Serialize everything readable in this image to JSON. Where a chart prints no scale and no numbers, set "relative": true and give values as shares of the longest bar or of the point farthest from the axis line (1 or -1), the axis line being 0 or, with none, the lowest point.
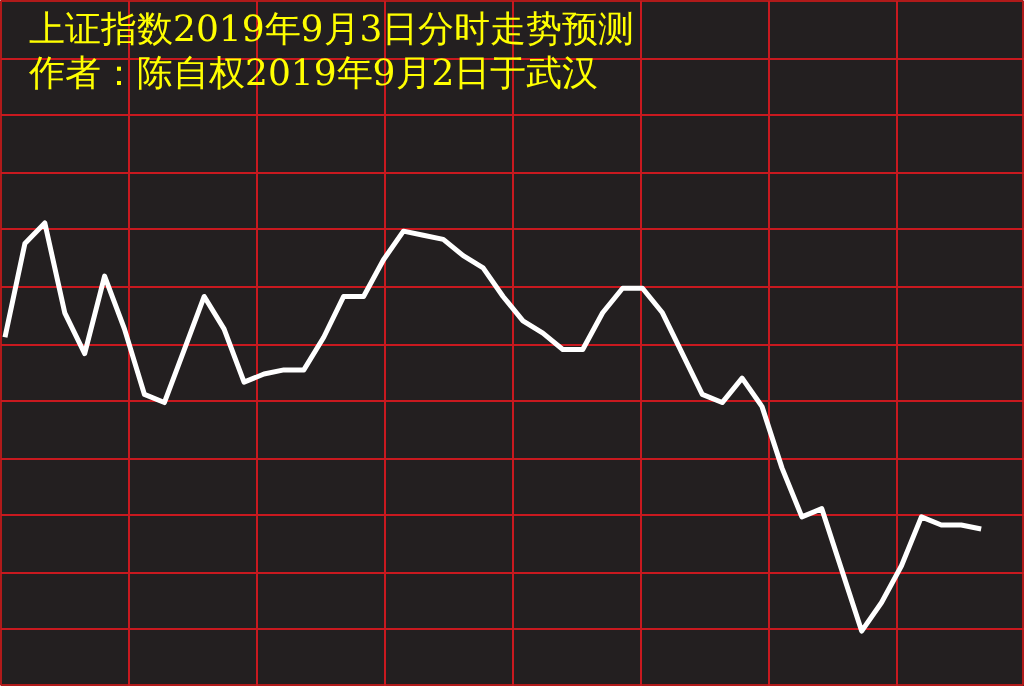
{
  "chart_data": {
    "type": "line",
    "title": "上证指数2019年9月3日分时走势预测",
    "subtitle": "作者：陈自权2019年9月2日于武汉",
    "relative": true,
    "grid": true,
    "marker": "none",
    "line_style": "solid",
    "categories": [
      null,
      null,
      null,
      null,
      null,
      null,
      null,
      null,
      null,
      null,
      null,
      null,
      null,
      null,
      null,
      null,
      null,
      null,
      null,
      null,
      null,
      null,
      null,
      null,
      null,
      null,
      null,
      null,
      null,
      null,
      null,
      null,
      null,
      null,
      null,
      null,
      null,
      null,
      null,
      null,
      null,
      null,
      null,
      null,
      null,
      null,
      null,
      null,
      null,
      null
    ],
    "series": [
      {
        "color": "#ffffff",
        "values": [
          0.72,
          0.95,
          1,
          0.78,
          0.68,
          0.87,
          0.74,
          0.58,
          0.56,
          0.69,
          0.82,
          0.74,
          0.61,
          0.63,
          0.64,
          0.64,
          0.72,
          0.82,
          0.82,
          0.91,
          0.98,
          0.97,
          0.96,
          0.92,
          0.89,
          0.82,
          0.76,
          0.73,
          0.69,
          0.69,
          0.78,
          0.84,
          0.84,
          0.78,
          0.68,
          0.58,
          0.56,
          0.62,
          0.55,
          0.4,
          0.28,
          0.3,
          0.15,
          0,
          0.07,
          0.16,
          0.28,
          0.26,
          0.26,
          0.25
        ]
      }
    ]
  }
}
